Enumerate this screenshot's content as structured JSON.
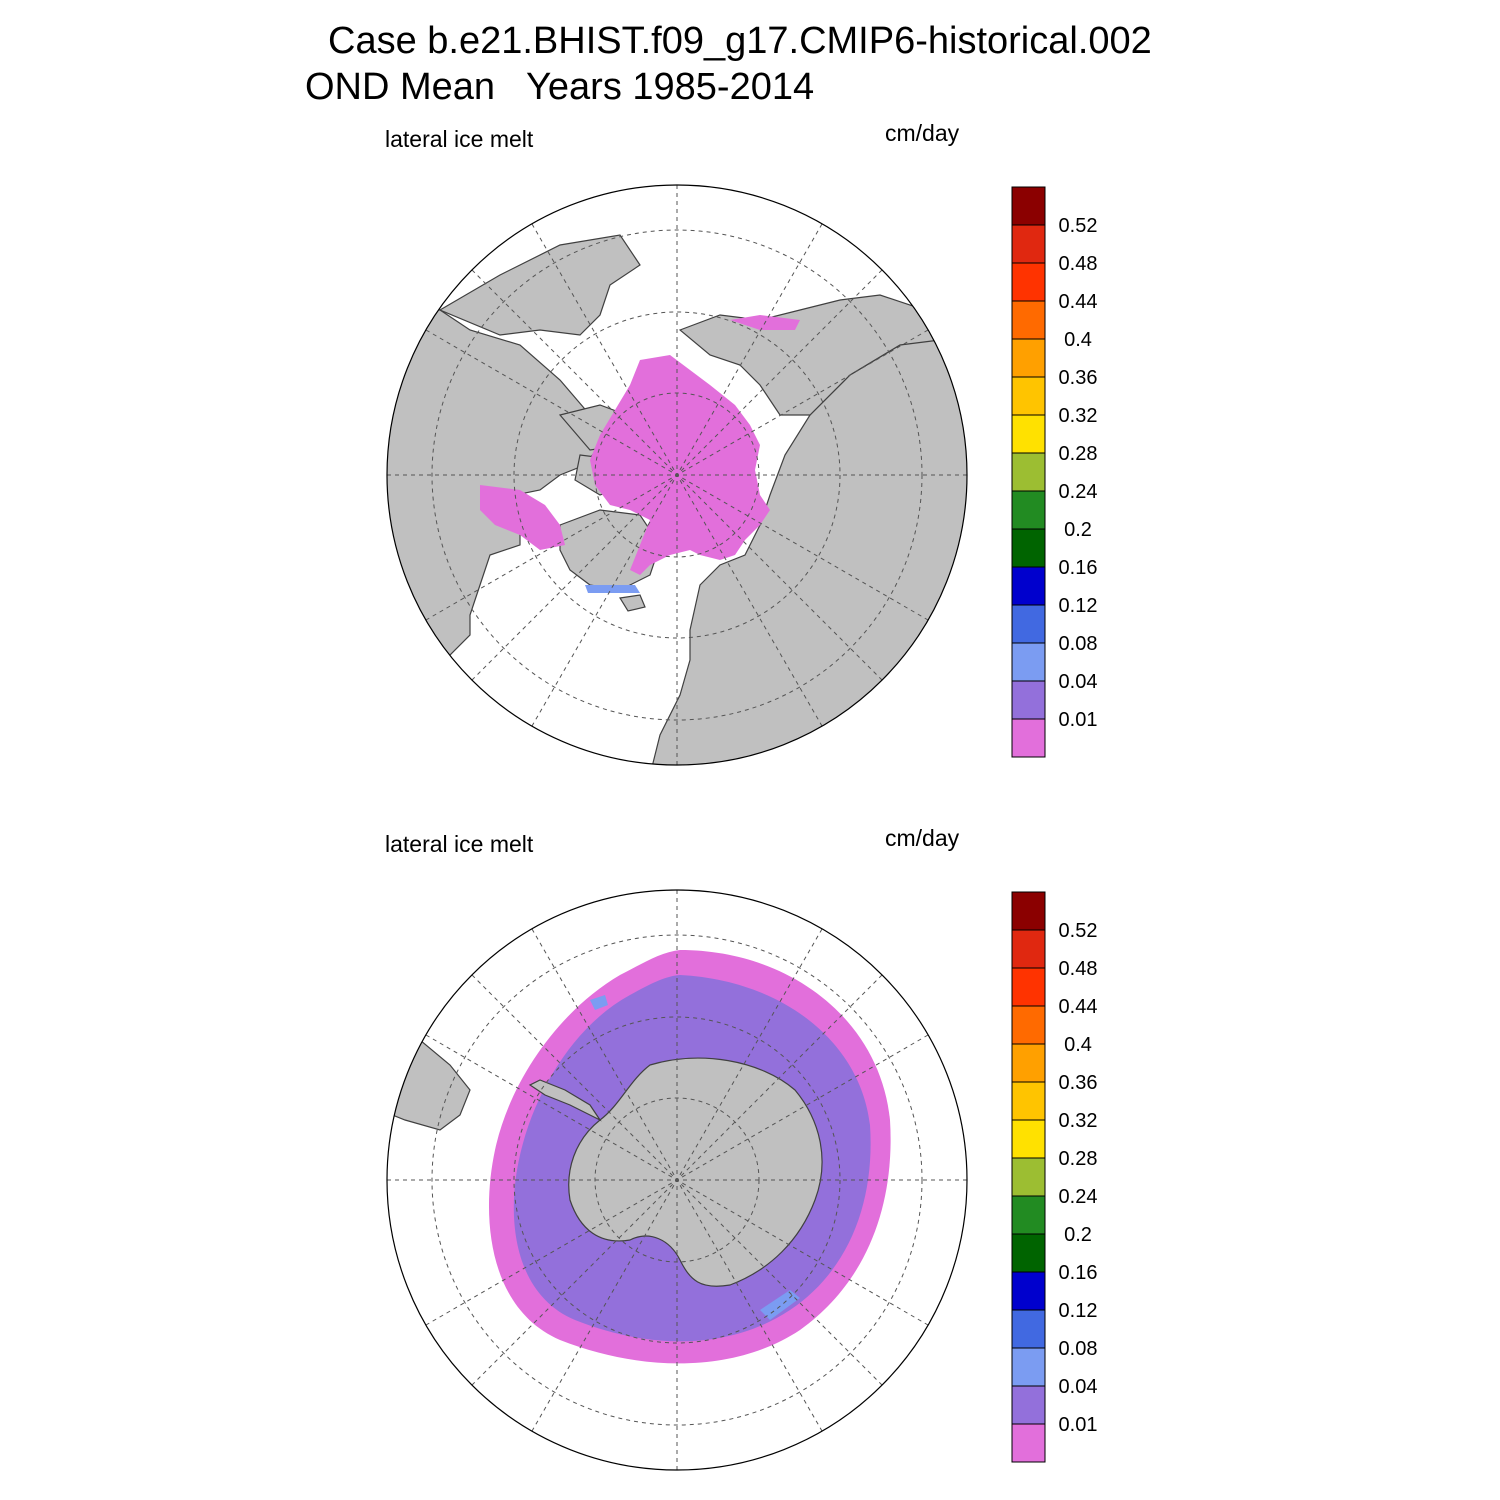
{
  "figure": {
    "title_line1": "Case b.e21.BHIST.f09_g17.CMIP6-historical.002",
    "title_line2": "OND Mean   Years 1985-2014"
  },
  "colors": {
    "land": "#c0c0c0",
    "ocean": "#ffffff",
    "coast": "#404040",
    "grid": "#555555"
  },
  "colorbar": {
    "levels": [
      "0.01",
      "0.04",
      "0.08",
      "0.12",
      "0.16",
      "0.2",
      "0.24",
      "0.28",
      "0.32",
      "0.36",
      "0.4",
      "0.44",
      "0.48",
      "0.52"
    ],
    "colors": [
      "#e26fdb",
      "#9370db",
      "#7b9cf2",
      "#4169e1",
      "#0000cd",
      "#006400",
      "#228b22",
      "#9cbe32",
      "#ffe100",
      "#ffc400",
      "#ffa000",
      "#ff6a00",
      "#ff3300",
      "#e02810",
      "#8b0000"
    ]
  },
  "panels": [
    {
      "id": "north",
      "variable_label": "lateral ice melt",
      "units": "cm/day",
      "projection": "north polar stereographic"
    },
    {
      "id": "south",
      "variable_label": "lateral ice melt",
      "units": "cm/day",
      "projection": "south polar stereographic"
    }
  ]
}
